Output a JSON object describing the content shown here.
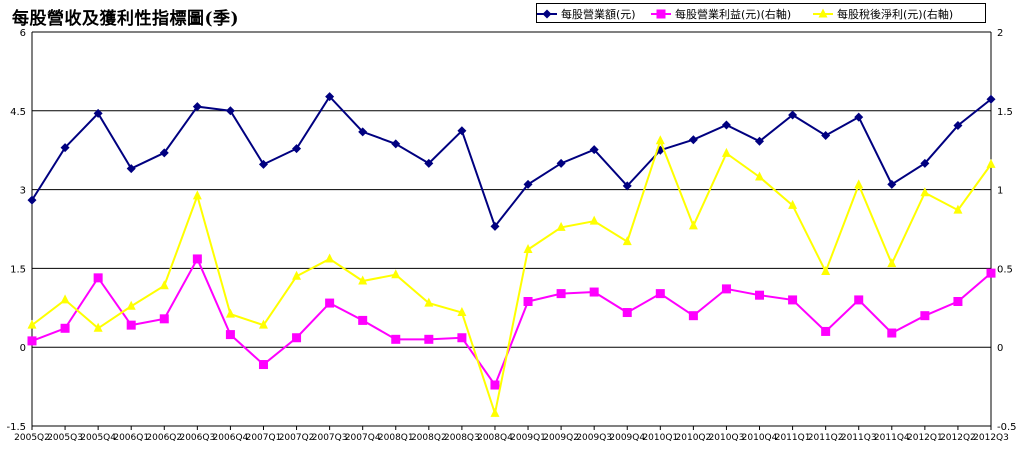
{
  "title": "每股營收及獲利性指標圖(季)",
  "chart_data": {
    "type": "line",
    "categories": [
      "2005Q2",
      "2005Q3",
      "2005Q4",
      "2006Q1",
      "2006Q2",
      "2006Q3",
      "2006Q4",
      "2007Q1",
      "2007Q2",
      "2007Q3",
      "2007Q4",
      "2008Q1",
      "2008Q2",
      "2008Q3",
      "2008Q4",
      "2009Q1",
      "2009Q2",
      "2009Q3",
      "2009Q4",
      "2010Q1",
      "2010Q2",
      "2010Q3",
      "2010Q4",
      "2011Q1",
      "2011Q2",
      "2011Q3",
      "2011Q4",
      "2012Q1",
      "2012Q2",
      "2012Q3"
    ],
    "left_axis": {
      "ylim": [
        -1.5,
        6
      ],
      "ticks": [
        "-1.5",
        "0",
        "1.5",
        "3",
        "4.5",
        "6"
      ]
    },
    "right_axis": {
      "ylim": [
        -0.5,
        2
      ],
      "ticks": [
        "-0.5",
        "0",
        "0.5",
        "1",
        "1.5",
        "2"
      ]
    },
    "grid": "horizontal",
    "legend_position": "top-right",
    "series": [
      {
        "name": "每股營業額(元)",
        "axis": "left",
        "color": "#000080",
        "marker": "diamond",
        "values": [
          2.8,
          3.8,
          4.45,
          3.4,
          3.7,
          4.58,
          4.5,
          3.48,
          3.78,
          4.77,
          4.1,
          3.87,
          3.5,
          4.12,
          2.3,
          3.1,
          3.5,
          3.76,
          3.07,
          3.75,
          3.95,
          4.23,
          3.92,
          4.42,
          4.03,
          4.38,
          3.1,
          3.5,
          4.22,
          4.72
        ]
      },
      {
        "name": "每股營業利益(元)(右軸)",
        "axis": "right",
        "color": "#ff00ff",
        "marker": "square",
        "values": [
          0.04,
          0.12,
          0.44,
          0.14,
          0.18,
          0.56,
          0.08,
          -0.11,
          0.06,
          0.28,
          0.17,
          0.05,
          0.05,
          0.06,
          -0.24,
          0.29,
          0.34,
          0.35,
          0.22,
          0.34,
          0.2,
          0.37,
          0.33,
          0.3,
          0.1,
          0.3,
          0.09,
          0.2,
          0.29,
          0.47
        ]
      },
      {
        "name": "每股稅後淨利(元)(右軸)",
        "axis": "right",
        "color": "#ffff00",
        "marker": "triangle",
        "values": [
          0.14,
          0.3,
          0.12,
          0.26,
          0.39,
          0.96,
          0.21,
          0.14,
          0.45,
          0.56,
          0.42,
          0.46,
          0.28,
          0.22,
          -0.42,
          0.62,
          0.76,
          0.8,
          0.67,
          1.31,
          0.77,
          1.23,
          1.08,
          0.9,
          0.48,
          1.03,
          0.53,
          0.98,
          0.87,
          1.16
        ]
      }
    ]
  }
}
